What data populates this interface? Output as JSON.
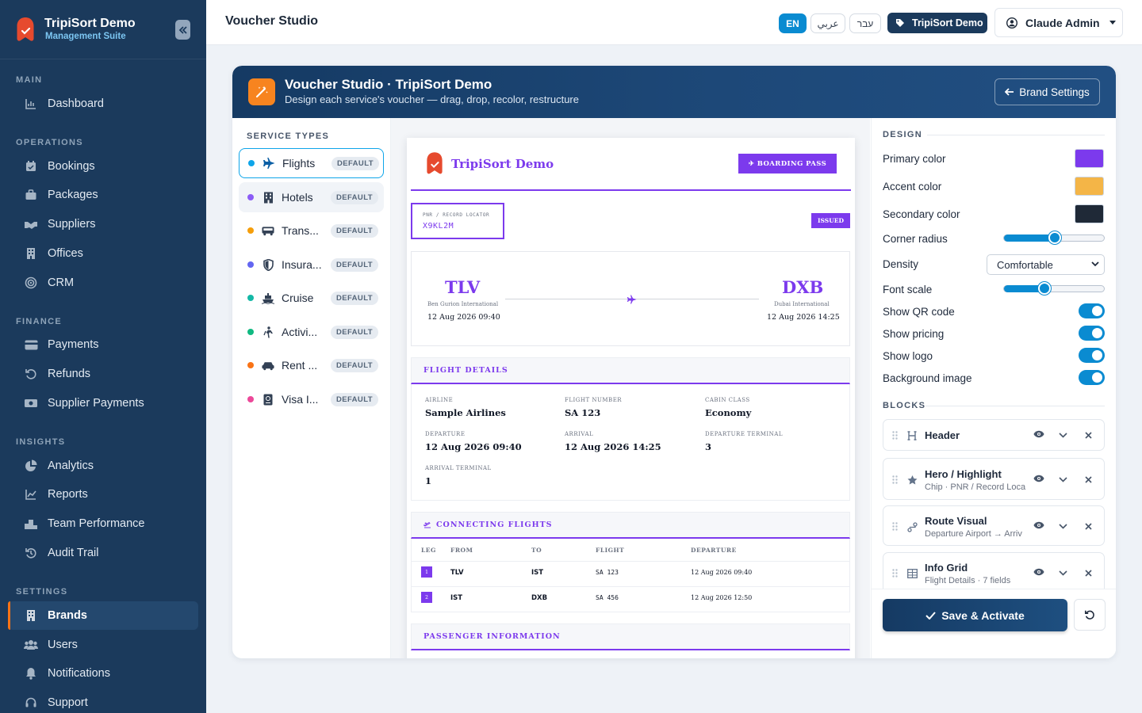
{
  "sidebar": {
    "brand_title": "TripiSort Demo",
    "brand_sub": "Management Suite",
    "sections": {
      "main": "MAIN",
      "operations": "OPERATIONS",
      "finance": "FINANCE",
      "insights": "INSIGHTS",
      "settings": "SETTINGS"
    },
    "items": {
      "dashboard": "Dashboard",
      "bookings": "Bookings",
      "packages": "Packages",
      "suppliers": "Suppliers",
      "offices": "Offices",
      "crm": "CRM",
      "payments": "Payments",
      "refunds": "Refunds",
      "supplier_payments": "Supplier Payments",
      "analytics": "Analytics",
      "reports": "Reports",
      "team_performance": "Team Performance",
      "audit_trail": "Audit Trail",
      "brands": "Brands",
      "users": "Users",
      "notifications": "Notifications",
      "support": "Support"
    },
    "active": "Brands"
  },
  "topbar": {
    "title": "Voucher Studio",
    "lang_en": "EN",
    "lang_ar": "عربي",
    "lang_he": "עבר",
    "brand_chip": "TripiSort Demo",
    "user": "Claude Admin"
  },
  "card": {
    "title": "Voucher Studio · TripiSort Demo",
    "subtitle": "Design each service's voucher — drag, drop, recolor, restructure",
    "brand_settings": "Brand Settings"
  },
  "services": {
    "heading": "SERVICE TYPES",
    "badge": "DEFAULT",
    "items": [
      {
        "name": "Flights",
        "color": "#0ea5e9"
      },
      {
        "name": "Hotels",
        "color": "#8b5cf6"
      },
      {
        "name": "Trans...",
        "color": "#f59e0b"
      },
      {
        "name": "Insura...",
        "color": "#6366f1"
      },
      {
        "name": "Cruise",
        "color": "#14b8a6"
      },
      {
        "name": "Activi...",
        "color": "#10b981"
      },
      {
        "name": "Rent ...",
        "color": "#f97316"
      },
      {
        "name": "Visa I...",
        "color": "#ec4899"
      }
    ]
  },
  "voucher": {
    "brand": "TripiSort Demo",
    "boarding_pass": "✈ BOARDING PASS",
    "pnr_label": "PNR / RECORD LOCATOR",
    "pnr": "X9KL2M",
    "status": "ISSUED",
    "from_code": "TLV",
    "from_airport": "Ben Gurion International",
    "from_dt": "12 Aug 2026 09:40",
    "to_code": "DXB",
    "to_airport": "Dubai International",
    "to_dt": "12 Aug 2026 14:25",
    "flight_details_title": "FLIGHT DETAILS",
    "fields": {
      "airline_l": "AIRLINE",
      "airline": "Sample Airlines",
      "flight_no_l": "FLIGHT NUMBER",
      "flight_no": "SA 123",
      "cabin_l": "CABIN CLASS",
      "cabin": "Economy",
      "departure_l": "DEPARTURE",
      "departure": "12 Aug 2026 09:40",
      "arrival_l": "ARRIVAL",
      "arrival": "12 Aug 2026 14:25",
      "dep_term_l": "DEPARTURE TERMINAL",
      "dep_term": "3",
      "arr_term_l": "ARRIVAL TERMINAL",
      "arr_term": "1"
    },
    "connecting_title": "CONNECTING FLIGHTS",
    "conn_headers": {
      "leg": "LEG",
      "from": "FROM",
      "to": "TO",
      "flight": "FLIGHT",
      "departure": "DEPARTURE"
    },
    "conn_rows": [
      {
        "leg": "1",
        "from": "TLV",
        "to": "IST",
        "flight": "SA 123",
        "departure": "12 Aug 2026 09:40"
      },
      {
        "leg": "2",
        "from": "IST",
        "to": "DXB",
        "flight": "SA 456",
        "departure": "12 Aug 2026 12:50"
      }
    ],
    "passenger_title": "PASSENGER INFORMATION"
  },
  "design": {
    "heading": "DESIGN",
    "primary_label": "Primary color",
    "primary": "#7c3aed",
    "accent_label": "Accent color",
    "accent": "#f4b547",
    "secondary_label": "Secondary color",
    "secondary": "#1f2937",
    "radius_label": "Corner radius",
    "radius_level": 0.5,
    "density_label": "Density",
    "density": "Comfortable",
    "font_label": "Font scale",
    "font_level": 0.4,
    "qr_label": "Show QR code",
    "pricing_label": "Show pricing",
    "logo_label": "Show logo",
    "bg_label": "Background image",
    "blocks_heading": "BLOCKS",
    "blocks": [
      {
        "title": "Header",
        "sub": ""
      },
      {
        "title": "Hero / Highlight",
        "sub": "Chip · PNR / Record Loca"
      },
      {
        "title": "Route Visual",
        "sub": "Departure Airport → Arriv"
      },
      {
        "title": "Info Grid",
        "sub": "Flight Details · 7 fields"
      }
    ],
    "save": "Save & Activate"
  }
}
